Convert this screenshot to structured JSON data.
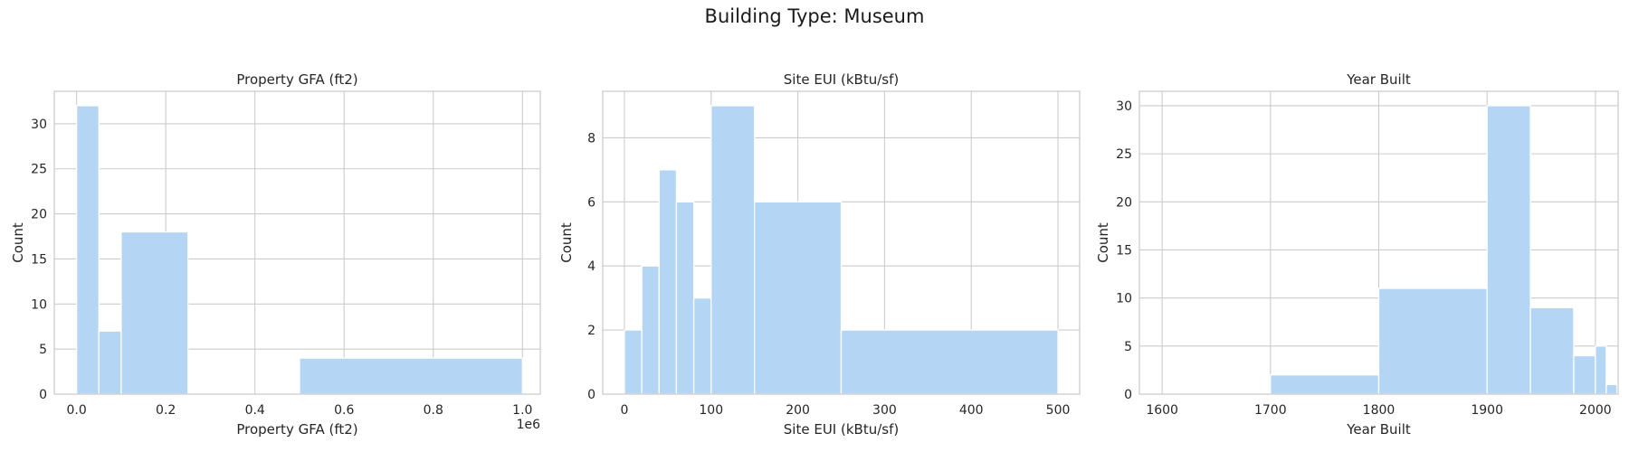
{
  "figure": {
    "title": "Building Type: Museum"
  },
  "colors": {
    "bar": "#b5d5f5",
    "grid": "#cccccc",
    "frame": "#cccccc",
    "background": "#ffffff"
  },
  "chart_data": [
    {
      "type": "histogram",
      "title": "Property GFA (ft2)",
      "xlabel": "Property GFA (ft2)",
      "ylabel": "Count",
      "x_offset_label": "1e6",
      "xlim": [
        -0.05,
        1.04
      ],
      "ylim": [
        0,
        33.6
      ],
      "xticks": [
        0.0,
        0.2,
        0.4,
        0.6,
        0.8,
        1.0
      ],
      "xtick_labels": [
        "0.0",
        "0.2",
        "0.4",
        "0.6",
        "0.8",
        "1.0"
      ],
      "yticks": [
        0,
        5,
        10,
        15,
        20,
        25,
        30
      ],
      "bins": [
        {
          "start": 0.0,
          "end": 0.05,
          "count": 32
        },
        {
          "start": 0.05,
          "end": 0.1,
          "count": 7
        },
        {
          "start": 0.1,
          "end": 0.25,
          "count": 18
        },
        {
          "start": 0.5,
          "end": 1.0,
          "count": 4
        }
      ]
    },
    {
      "type": "histogram",
      "title": "Site EUI (kBtu/sf)",
      "xlabel": "Site EUI (kBtu/sf)",
      "ylabel": "Count",
      "xlim": [
        -25,
        525
      ],
      "ylim": [
        0,
        9.45
      ],
      "xticks": [
        0,
        100,
        200,
        300,
        400,
        500
      ],
      "xtick_labels": [
        "0",
        "100",
        "200",
        "300",
        "400",
        "500"
      ],
      "yticks": [
        0,
        2,
        4,
        6,
        8
      ],
      "bins": [
        {
          "start": 0,
          "end": 20,
          "count": 2
        },
        {
          "start": 20,
          "end": 40,
          "count": 4
        },
        {
          "start": 40,
          "end": 60,
          "count": 7
        },
        {
          "start": 60,
          "end": 80,
          "count": 6
        },
        {
          "start": 80,
          "end": 100,
          "count": 3
        },
        {
          "start": 100,
          "end": 150,
          "count": 9
        },
        {
          "start": 150,
          "end": 250,
          "count": 6
        },
        {
          "start": 250,
          "end": 500,
          "count": 2
        }
      ]
    },
    {
      "type": "histogram",
      "title": "Year Built",
      "xlabel": "Year Built",
      "ylabel": "Count",
      "xlim": [
        1579,
        2021
      ],
      "ylim": [
        0,
        31.5
      ],
      "xticks": [
        1600,
        1700,
        1800,
        1900,
        2000
      ],
      "xtick_labels": [
        "1600",
        "1700",
        "1800",
        "1900",
        "2000"
      ],
      "yticks": [
        0,
        5,
        10,
        15,
        20,
        25,
        30
      ],
      "bins": [
        {
          "start": 1700,
          "end": 1800,
          "count": 2
        },
        {
          "start": 1800,
          "end": 1900,
          "count": 11
        },
        {
          "start": 1900,
          "end": 1940,
          "count": 30
        },
        {
          "start": 1940,
          "end": 1980,
          "count": 9
        },
        {
          "start": 1980,
          "end": 2000,
          "count": 4
        },
        {
          "start": 2000,
          "end": 2010,
          "count": 5
        },
        {
          "start": 2010,
          "end": 2020,
          "count": 1
        }
      ]
    }
  ]
}
